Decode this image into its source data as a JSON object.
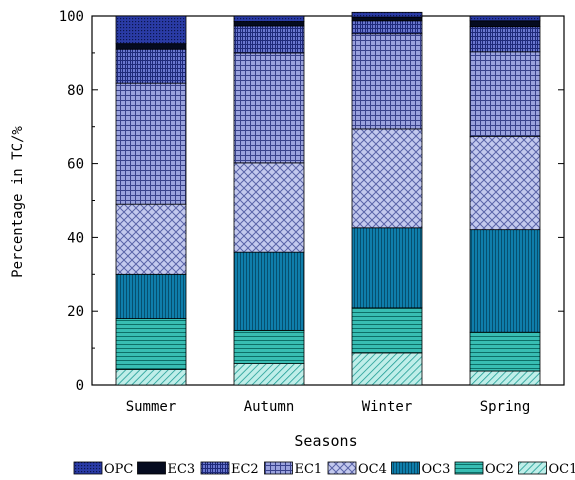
{
  "chart_data": {
    "type": "bar",
    "stacked": true,
    "xlabel": "Seasons",
    "ylabel": "Percentage in TC/%",
    "ylim": [
      0,
      100
    ],
    "yticks": [
      0,
      20,
      40,
      60,
      80,
      100
    ],
    "categories": [
      "Summer",
      "Autumn",
      "Winter",
      "Spring"
    ],
    "legend_position": "bottom",
    "legend_order": [
      "OPC",
      "EC3",
      "EC2",
      "EC1",
      "OC4",
      "OC3",
      "OC2",
      "OC1"
    ],
    "series": [
      {
        "name": "OC1",
        "values": [
          4.2,
          5.8,
          8.7,
          3.8
        ],
        "color": "#7fd8d0",
        "pattern": "diagonal"
      },
      {
        "name": "OC2",
        "values": [
          13.8,
          9.0,
          12.2,
          10.5
        ],
        "color": "#2fb3aa",
        "pattern": "horizontal"
      },
      {
        "name": "OC3",
        "values": [
          12.0,
          21.2,
          21.7,
          27.8
        ],
        "color": "#0a6f9a",
        "pattern": "vertical"
      },
      {
        "name": "OC4",
        "values": [
          19.0,
          24.2,
          26.8,
          25.3
        ],
        "color": "#a9b1e2",
        "pattern": "crosshatch"
      },
      {
        "name": "EC1",
        "values": [
          32.8,
          29.8,
          25.8,
          22.9
        ],
        "color": "#8e96d6",
        "pattern": "grid"
      },
      {
        "name": "EC2",
        "values": [
          9.2,
          7.3,
          3.5,
          6.8
        ],
        "color": "#5a68c4",
        "pattern": "vertical-dense"
      },
      {
        "name": "EC3",
        "values": [
          1.5,
          1.2,
          1.0,
          1.6
        ],
        "color": "#0b1b3a",
        "pattern": "solid"
      },
      {
        "name": "OPC",
        "values": [
          7.5,
          1.5,
          1.3,
          1.3
        ],
        "color": "#263596",
        "pattern": "dots"
      }
    ]
  }
}
